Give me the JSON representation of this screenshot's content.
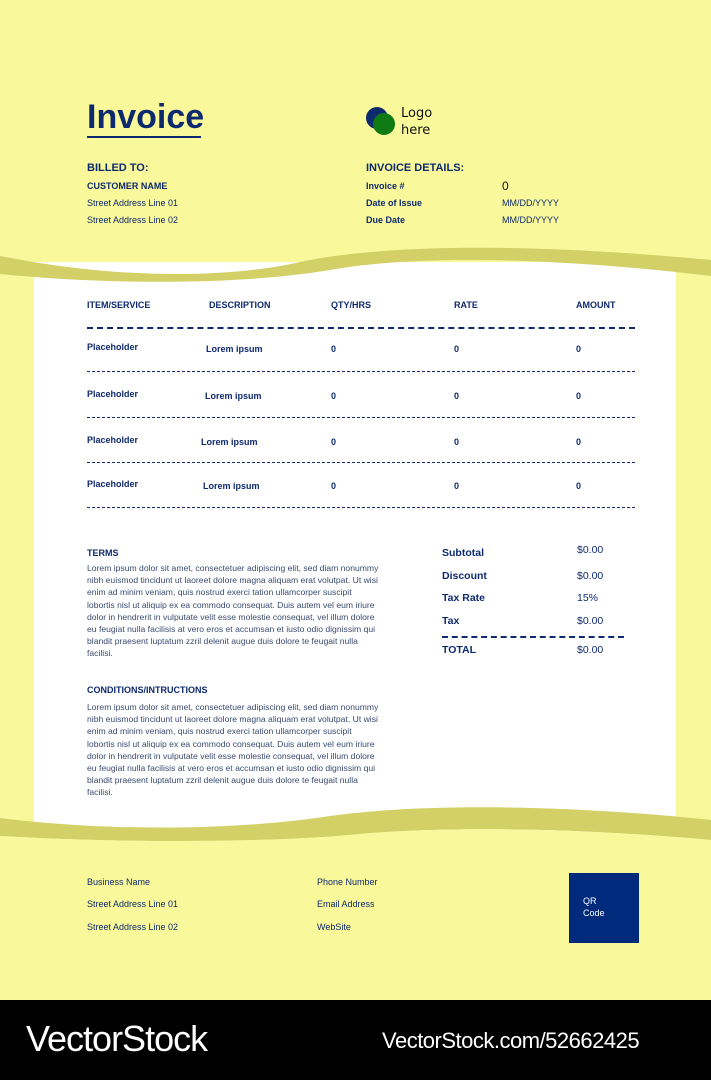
{
  "colors": {
    "background": "#f9f99b",
    "wave": "#d4d068",
    "navy": "#0e2a6e",
    "logo_blue": "#0e2a6e",
    "logo_green": "#0f7a14",
    "qr": "#002a7b"
  },
  "header": {
    "title": "Invoice",
    "logo_text_1": "Logo",
    "logo_text_2": "here"
  },
  "billed_to": {
    "heading": "BILLED TO:",
    "customer_name": "CUSTOMER NAME",
    "address_1": "Street Address Line 01",
    "address_2": "Street Address Line 02"
  },
  "invoice_details": {
    "heading": "INVOICE DETAILS:",
    "fields": [
      {
        "label": "Invoice #",
        "value": "0"
      },
      {
        "label": "Date of Issue",
        "value": "MM/DD/YYYY"
      },
      {
        "label": "Due Date",
        "value": "MM/DD/YYYY"
      }
    ]
  },
  "table": {
    "columns": [
      "ITEM/SERVICE",
      "DESCRIPTION",
      "QTY/HRS",
      "RATE",
      "AMOUNT"
    ],
    "rows": [
      [
        "Placeholder",
        "Lorem ipsum",
        "0",
        "0",
        "0"
      ],
      [
        "Placeholder",
        "Lorem ipsum",
        "0",
        "0",
        "0"
      ],
      [
        "Placeholder",
        "Lorem ipsum",
        "0",
        "0",
        "0"
      ],
      [
        "Placeholder",
        "Lorem ipsum",
        "0",
        "0",
        "0"
      ]
    ]
  },
  "terms": {
    "heading": "TERMS",
    "text": "Lorem ipsum dolor sit amet, consectetuer adipiscing elit, sed diam nonummy nibh euismod tincidunt ut laoreet dolore magna aliquam erat volutpat. Ut wisi enim ad minim veniam, quis nostrud exerci tation ullamcorper suscipit lobortis nisl ut aliquip ex ea commodo consequat. Duis autem vel eum iriure dolor in hendrerit in vulputate velit esse molestie consequat, vel illum dolore eu feugiat nulla facilisis at vero eros et accumsan et iusto odio dignissim qui blandit praesent luptatum zzril delenit augue duis dolore te feugait nulla facilisi."
  },
  "conditions": {
    "heading": "CONDITIONS/INTRUCTIONS",
    "text": "Lorem ipsum dolor sit amet, consectetuer adipiscing elit, sed diam nonummy nibh euismod tincidunt ut laoreet dolore magna aliquam erat volutpat. Ut wisi enim ad minim veniam, quis nostrud exerci tation ullamcorper suscipit lobortis nisl ut aliquip ex ea commodo consequat. Duis autem vel eum iriure dolor in hendrerit in vulputate velit esse molestie consequat, vel illum dolore eu feugiat nulla facilisis at vero eros et accumsan et iusto odio dignissim qui blandit praesent luptatum zzril delenit augue duis dolore te feugait nulla facilisi."
  },
  "totals": {
    "items": [
      {
        "label": "Subtotal",
        "value": "$0.00"
      },
      {
        "label": "Discount",
        "value": "$0.00"
      },
      {
        "label": "Tax Rate",
        "value": "15%"
      },
      {
        "label": "Tax",
        "value": "$0.00"
      }
    ],
    "total_label": "TOTAL",
    "total_value": "$0.00"
  },
  "footer": {
    "business_name": "Business Name",
    "address_1": "Street Address Line 01",
    "address_2": "Street Address Line 02",
    "phone": "Phone Number",
    "email": "Email Address",
    "website": "WebSite",
    "qr_1": "QR",
    "qr_2": "Code"
  },
  "watermark": {
    "brand": "VectorStock",
    "url": "VectorStock.com/52662425"
  }
}
